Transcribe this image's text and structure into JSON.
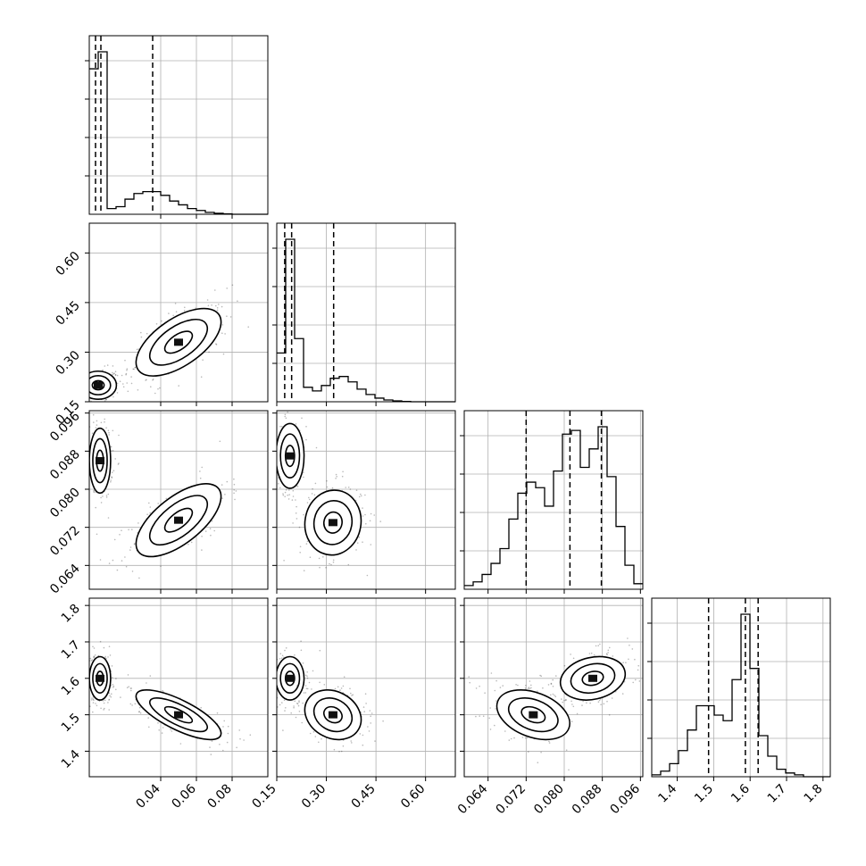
{
  "chart_data": {
    "type": "corner",
    "grid": true,
    "colors": {
      "hist": "#000000",
      "quantile": "#000000",
      "grid": "#b0b0b0",
      "points": "#000000",
      "density": "#888888"
    },
    "parameters": [
      {
        "range": [
          0.0,
          0.1
        ],
        "ticks": [
          "0.04",
          "0.06",
          "0.08"
        ],
        "tick_values": [
          0.04,
          0.06,
          0.08
        ]
      },
      {
        "range": [
          0.15,
          0.69
        ],
        "ticks": [
          "0.15",
          "0.30",
          "0.45",
          "0.60"
        ],
        "tick_values": [
          0.15,
          0.3,
          0.45,
          0.6
        ]
      },
      {
        "range": [
          0.059,
          0.0965
        ],
        "ticks": [
          "0.064",
          "0.072",
          "0.080",
          "0.088",
          "0.096"
        ],
        "tick_values": [
          0.064,
          0.072,
          0.08,
          0.088,
          0.096
        ]
      },
      {
        "range": [
          1.33,
          1.82
        ],
        "ticks": [
          "1.4",
          "1.5",
          "1.6",
          "1.7",
          "1.8"
        ],
        "tick_values": [
          1.4,
          1.5,
          1.6,
          1.7,
          1.8
        ]
      }
    ],
    "histograms": [
      {
        "param": 0,
        "bin_edges": [
          0.0,
          0.005,
          0.01,
          0.015,
          0.02,
          0.025,
          0.03,
          0.035,
          0.04,
          0.045,
          0.05,
          0.055,
          0.06,
          0.065,
          0.07,
          0.075,
          0.08,
          0.085,
          0.09,
          0.095,
          0.1
        ],
        "counts": [
          0.77,
          0.86,
          0.03,
          0.04,
          0.08,
          0.11,
          0.12,
          0.12,
          0.1,
          0.07,
          0.05,
          0.03,
          0.02,
          0.01,
          0.005,
          0.002,
          0,
          0,
          0,
          0
        ],
        "quantiles": [
          0.0035,
          0.0065,
          0.0355
        ]
      },
      {
        "param": 1,
        "bin_edges": [
          0.15,
          0.177,
          0.204,
          0.231,
          0.258,
          0.285,
          0.312,
          0.339,
          0.366,
          0.393,
          0.42,
          0.447,
          0.474,
          0.501,
          0.528,
          0.555,
          0.582,
          0.609,
          0.636,
          0.663,
          0.69
        ],
        "counts": [
          0.27,
          0.9,
          0.35,
          0.08,
          0.06,
          0.09,
          0.13,
          0.14,
          0.11,
          0.07,
          0.04,
          0.02,
          0.01,
          0.005,
          0.002,
          0,
          0,
          0,
          0,
          0
        ],
        "quantiles": [
          0.174,
          0.195,
          0.322
        ]
      },
      {
        "param": 2,
        "bin_edges": [
          0.059,
          0.060875,
          0.06275,
          0.064625,
          0.0665,
          0.068375,
          0.07025,
          0.072125,
          0.074,
          0.075875,
          0.07775,
          0.079625,
          0.0815,
          0.083375,
          0.08525,
          0.087125,
          0.089,
          0.090875,
          0.09275,
          0.094625,
          0.0965
        ],
        "counts": [
          0.02,
          0.04,
          0.08,
          0.14,
          0.22,
          0.38,
          0.52,
          0.58,
          0.55,
          0.45,
          0.64,
          0.84,
          0.86,
          0.66,
          0.76,
          0.88,
          0.61,
          0.34,
          0.13,
          0.03
        ],
        "quantiles": [
          0.072,
          0.0812,
          0.0878
        ]
      },
      {
        "param": 3,
        "bin_edges": [
          1.33,
          1.3545,
          1.379,
          1.4035,
          1.428,
          1.4525,
          1.477,
          1.5015,
          1.526,
          1.5505,
          1.575,
          1.5995,
          1.624,
          1.6485,
          1.673,
          1.6975,
          1.722,
          1.7465,
          1.771,
          1.7955,
          1.82
        ],
        "counts": [
          0.01,
          0.03,
          0.07,
          0.14,
          0.25,
          0.38,
          0.38,
          0.33,
          0.3,
          0.52,
          0.87,
          0.58,
          0.22,
          0.11,
          0.04,
          0.02,
          0.01,
          0,
          0,
          0
        ],
        "quantiles": [
          1.486,
          1.587,
          1.622
        ]
      }
    ],
    "contour_panels": [
      {
        "x": 0,
        "y": 1,
        "modes": [
          {
            "cx": 0.005,
            "cy": 0.2,
            "sx": 0.006,
            "sy": 0.025,
            "rho": 0.0,
            "w": 0.45
          },
          {
            "cx": 0.05,
            "cy": 0.33,
            "sx": 0.014,
            "sy": 0.06,
            "rho": 0.6,
            "w": 0.55
          }
        ]
      },
      {
        "x": 0,
        "y": 2,
        "modes": [
          {
            "cx": 0.006,
            "cy": 0.086,
            "sx": 0.0035,
            "sy": 0.004,
            "rho": 0.0,
            "w": 0.45
          },
          {
            "cx": 0.05,
            "cy": 0.0735,
            "sx": 0.014,
            "sy": 0.0045,
            "rho": 0.65,
            "w": 0.55
          }
        ]
      },
      {
        "x": 1,
        "y": 2,
        "modes": [
          {
            "cx": 0.19,
            "cy": 0.087,
            "sx": 0.025,
            "sy": 0.004,
            "rho": 0.0,
            "w": 0.45
          },
          {
            "cx": 0.32,
            "cy": 0.073,
            "sx": 0.05,
            "sy": 0.004,
            "rho": 0.05,
            "w": 0.55
          }
        ]
      },
      {
        "x": 0,
        "y": 3,
        "modes": [
          {
            "cx": 0.006,
            "cy": 1.6,
            "sx": 0.0035,
            "sy": 0.035,
            "rho": 0.0,
            "w": 0.45
          },
          {
            "cx": 0.05,
            "cy": 1.5,
            "sx": 0.014,
            "sy": 0.04,
            "rho": -0.75,
            "w": 0.55
          }
        ]
      },
      {
        "x": 1,
        "y": 3,
        "modes": [
          {
            "cx": 0.19,
            "cy": 1.6,
            "sx": 0.025,
            "sy": 0.035,
            "rho": 0.0,
            "w": 0.45
          },
          {
            "cx": 0.32,
            "cy": 1.5,
            "sx": 0.05,
            "sy": 0.04,
            "rho": -0.2,
            "w": 0.55
          }
        ]
      },
      {
        "x": 2,
        "y": 3,
        "modes": [
          {
            "cx": 0.086,
            "cy": 1.6,
            "sx": 0.004,
            "sy": 0.035,
            "rho": 0.2,
            "w": 0.45
          },
          {
            "cx": 0.0735,
            "cy": 1.5,
            "sx": 0.0045,
            "sy": 0.04,
            "rho": -0.35,
            "w": 0.55
          }
        ]
      }
    ]
  }
}
